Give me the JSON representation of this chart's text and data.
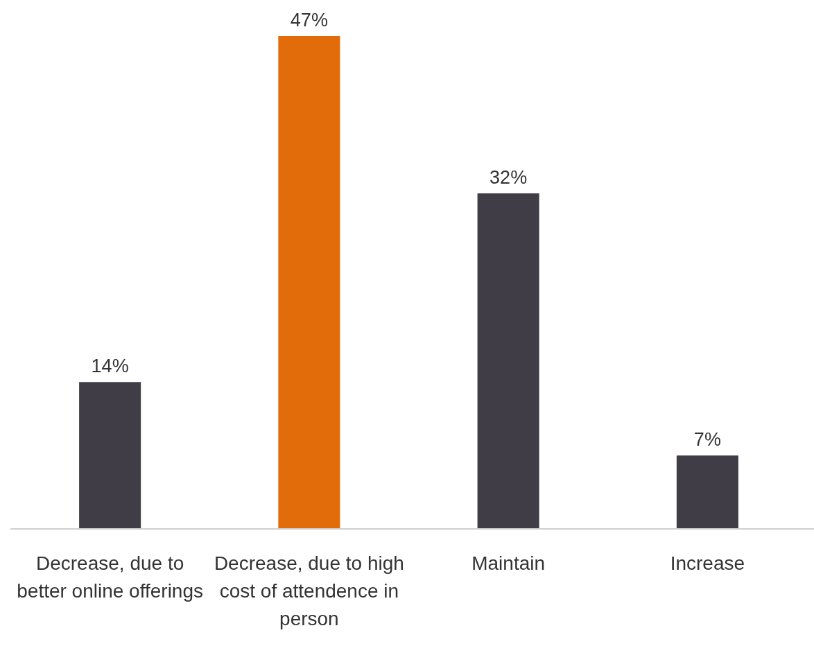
{
  "chart_data": {
    "type": "bar",
    "categories": [
      "Decrease, due to better online offerings",
      "Decrease, due to high cost of attendence in person",
      "Maintain",
      "Increase"
    ],
    "values": [
      14,
      47,
      32,
      7
    ],
    "colors": [
      "#403d47",
      "#e36c0a",
      "#403d47",
      "#403d47"
    ],
    "value_labels": [
      "14%",
      "47%",
      "32%",
      "7%"
    ]
  }
}
